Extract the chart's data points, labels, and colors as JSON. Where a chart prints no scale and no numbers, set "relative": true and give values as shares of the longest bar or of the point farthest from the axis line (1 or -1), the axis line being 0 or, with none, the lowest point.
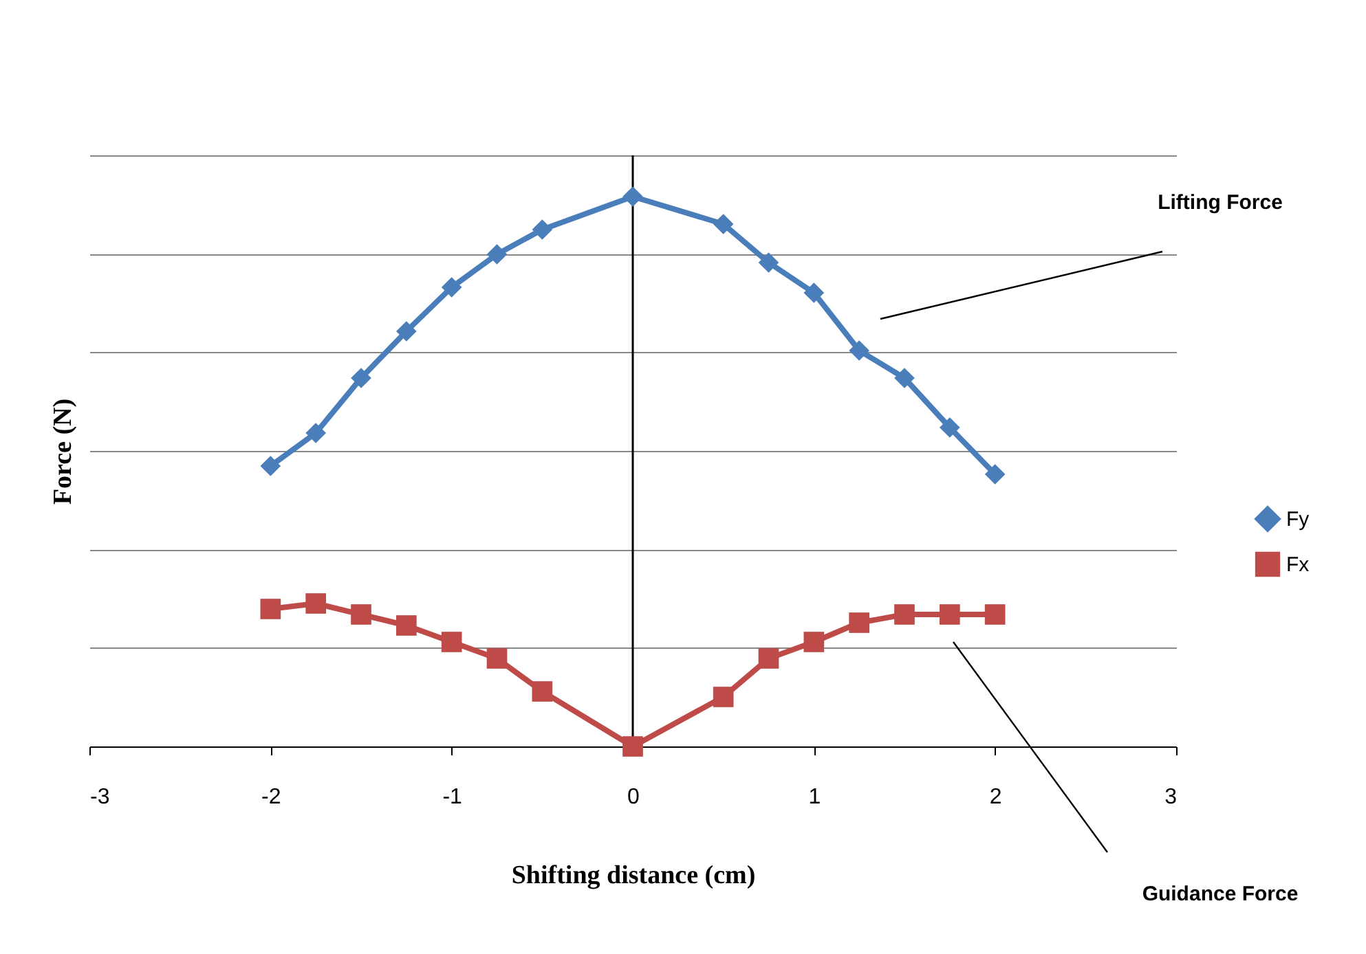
{
  "chart_data": {
    "type": "line",
    "relative": true,
    "xlabel": "Shifting distance (cm)",
    "ylabel": "Force (N)",
    "x": [
      -2,
      -1.75,
      -1.5,
      -1.25,
      -1,
      -0.75,
      -0.5,
      0,
      0.5,
      0.75,
      1,
      1.25,
      1.5,
      1.75,
      2
    ],
    "xlim": [
      -3,
      3
    ],
    "xticks": [
      -3,
      -2,
      -1,
      0,
      1,
      2,
      3
    ],
    "grid": "y",
    "legend": "right",
    "line_style": "solid",
    "series": [
      {
        "name": "Fy",
        "color": "#4a7ebb",
        "marker": "diamond",
        "values": [
          0.51,
          0.57,
          0.67,
          0.755,
          0.835,
          0.895,
          0.94,
          1,
          0.95,
          0.88,
          0.825,
          0.72,
          0.67,
          0.58,
          0.495
        ]
      },
      {
        "name": "Fx",
        "color": "#be4b48",
        "marker": "square",
        "values": [
          0.25,
          0.26,
          0.24,
          0.22,
          0.19,
          0.16,
          0.1,
          0,
          0.09,
          0.16,
          0.19,
          0.225,
          0.24,
          0.24,
          0.24
        ]
      }
    ],
    "ref_lines": [
      {
        "axis": "x",
        "value": 0,
        "color": "#000000"
      }
    ],
    "annotations": [
      "Lifting Force",
      "Guidance Force"
    ]
  }
}
